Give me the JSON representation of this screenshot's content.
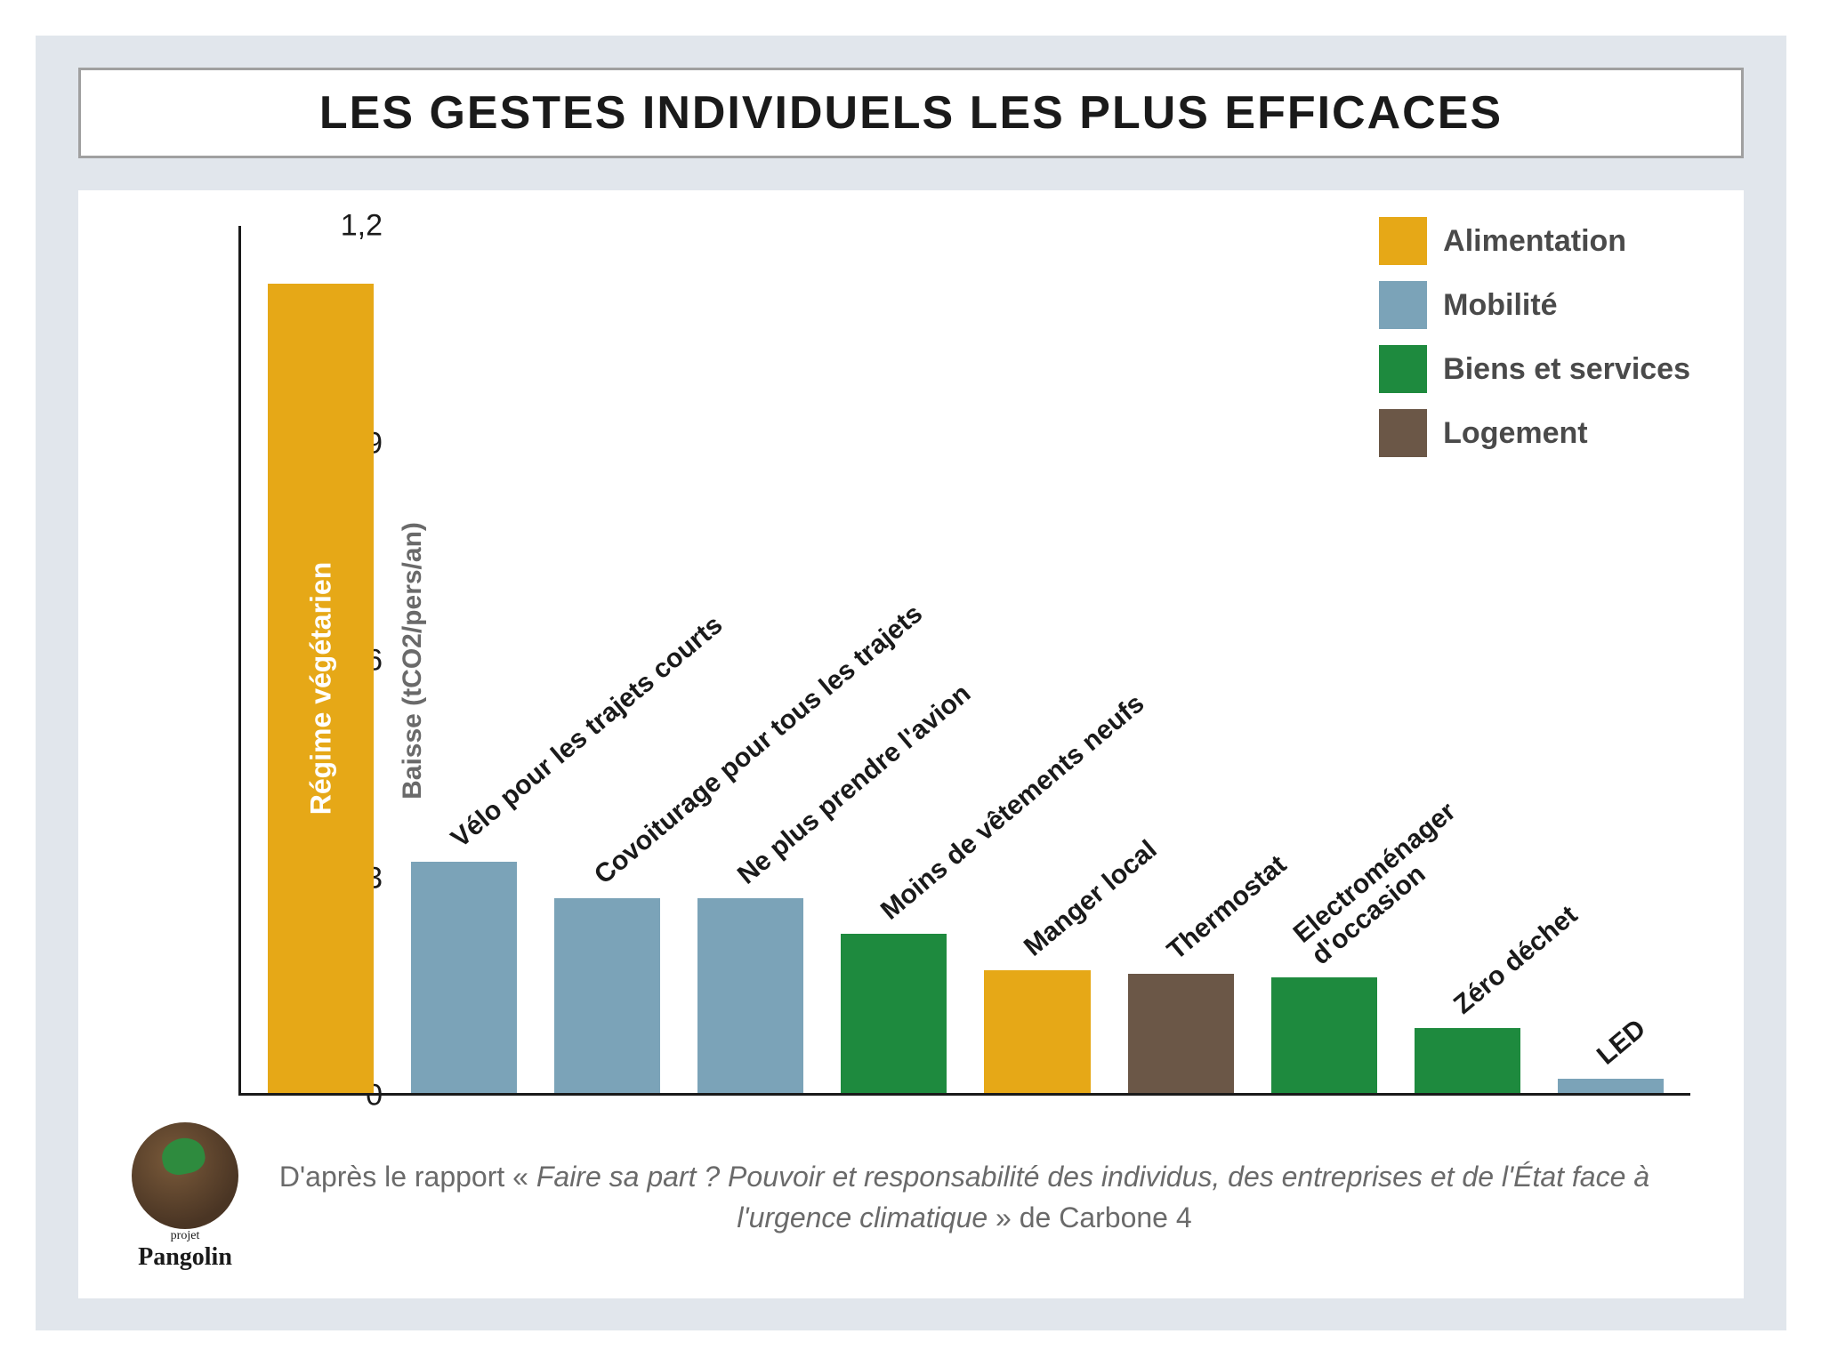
{
  "title": "LES GESTES INDIVIDUELS LES PLUS EFFICACES",
  "chart": {
    "type": "bar",
    "y_axis_label": "Baisse (tCO2/pers/an)",
    "y_max": 1.2,
    "y_ticks": [
      "0",
      "0,3",
      "0,6",
      "0,9",
      "1,2"
    ],
    "y_tick_values": [
      0,
      0.3,
      0.6,
      0.9,
      1.2
    ],
    "background_color": "#ffffff",
    "panel_bg": "#e1e6ec",
    "axis_color": "#1a1a1a",
    "bars": [
      {
        "label": "Régime végétarien",
        "value": 1.12,
        "category": "alimentation",
        "label_inside": true
      },
      {
        "label": "Vélo pour les trajets courts",
        "value": 0.32,
        "category": "mobilite"
      },
      {
        "label": "Covoiturage pour tous les trajets",
        "value": 0.27,
        "category": "mobilite"
      },
      {
        "label": "Ne plus prendre l'avion",
        "value": 0.27,
        "category": "mobilite"
      },
      {
        "label": "Moins de vêtements neufs",
        "value": 0.22,
        "category": "biens"
      },
      {
        "label": "Manger local",
        "value": 0.17,
        "category": "alimentation"
      },
      {
        "label": "Thermostat",
        "value": 0.165,
        "category": "logement"
      },
      {
        "label": "Electroménager\nd'occasion",
        "value": 0.16,
        "category": "biens",
        "multiline": true
      },
      {
        "label": "Zéro déchet",
        "value": 0.09,
        "category": "biens"
      },
      {
        "label": "LED",
        "value": 0.02,
        "category": "mobilite"
      }
    ],
    "categories": {
      "alimentation": {
        "label": "Alimentation",
        "color": "#e6a817"
      },
      "mobilite": {
        "label": "Mobilité",
        "color": "#7ba3b8"
      },
      "biens": {
        "label": "Biens et services",
        "color": "#1e8a3e"
      },
      "logement": {
        "label": "Logement",
        "color": "#6b5747"
      }
    },
    "legend_order": [
      "alimentation",
      "mobilite",
      "biens",
      "logement"
    ],
    "label_fontsize": 30,
    "label_fontweight": 700,
    "tick_fontsize": 34
  },
  "footer": {
    "logo_project": "projet",
    "logo_name": "Pangolin",
    "citation_prefix": "D'après le rapport « ",
    "citation_title": "Faire sa part ? Pouvoir et responsabilité des individus, des entreprises et de l'État face à l'urgence climatique",
    "citation_suffix": " » de Carbone 4"
  }
}
